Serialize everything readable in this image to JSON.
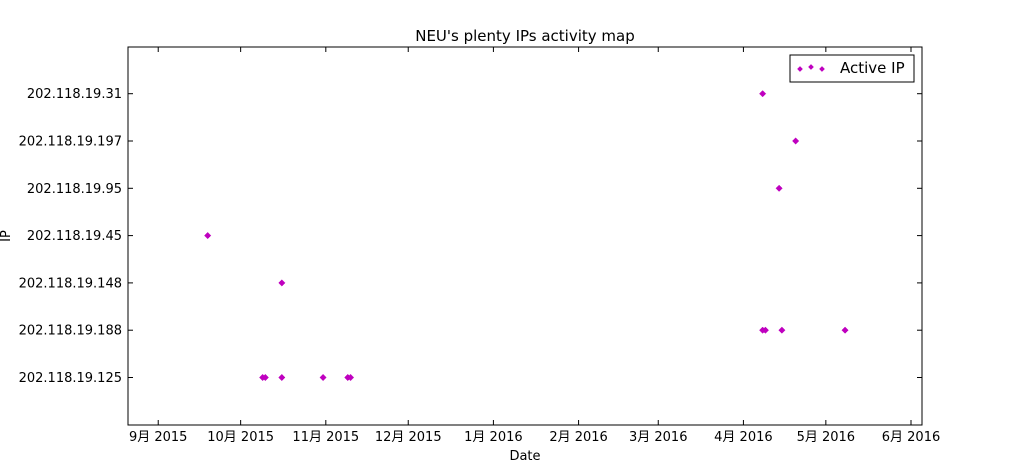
{
  "chart_data": {
    "type": "scatter",
    "title": "NEU's plenty IPs activity map",
    "xlabel": "Date",
    "ylabel": "IP",
    "x_ticks": [
      "9月 2015",
      "10月 2015",
      "11月 2015",
      "12月 2015",
      "1月 2016",
      "2月 2016",
      "3月 2016",
      "4月 2016",
      "5月 2016",
      "6月 2016"
    ],
    "x_tick_dates": [
      "2015-09-01",
      "2015-10-01",
      "2015-11-01",
      "2015-12-01",
      "2016-01-01",
      "2016-02-01",
      "2016-03-01",
      "2016-04-01",
      "2016-05-01",
      "2016-06-01"
    ],
    "xlim": [
      "2015-08-21",
      "2016-06-05"
    ],
    "y_categories": [
      "202.118.19.125",
      "202.118.19.188",
      "202.118.19.148",
      "202.118.19.45",
      "202.118.19.95",
      "202.118.19.197",
      "202.118.19.31"
    ],
    "grid": false,
    "legend_position": "top-right",
    "series": [
      {
        "name": "Active IP",
        "color": "#bf00bf",
        "marker": "diamond",
        "points": [
          {
            "x": "2015-09-19",
            "y": "202.118.19.45"
          },
          {
            "x": "2015-10-09",
            "y": "202.118.19.125"
          },
          {
            "x": "2015-10-10",
            "y": "202.118.19.125"
          },
          {
            "x": "2015-10-16",
            "y": "202.118.19.125"
          },
          {
            "x": "2015-10-16",
            "y": "202.118.19.148"
          },
          {
            "x": "2015-10-31",
            "y": "202.118.19.125"
          },
          {
            "x": "2015-11-09",
            "y": "202.118.19.125"
          },
          {
            "x": "2015-11-10",
            "y": "202.118.19.125"
          },
          {
            "x": "2016-04-08",
            "y": "202.118.19.31"
          },
          {
            "x": "2016-04-08",
            "y": "202.118.19.188"
          },
          {
            "x": "2016-04-09",
            "y": "202.118.19.188"
          },
          {
            "x": "2016-04-14",
            "y": "202.118.19.95"
          },
          {
            "x": "2016-04-15",
            "y": "202.118.19.188"
          },
          {
            "x": "2016-04-20",
            "y": "202.118.19.197"
          },
          {
            "x": "2016-05-08",
            "y": "202.118.19.188"
          }
        ]
      }
    ]
  }
}
